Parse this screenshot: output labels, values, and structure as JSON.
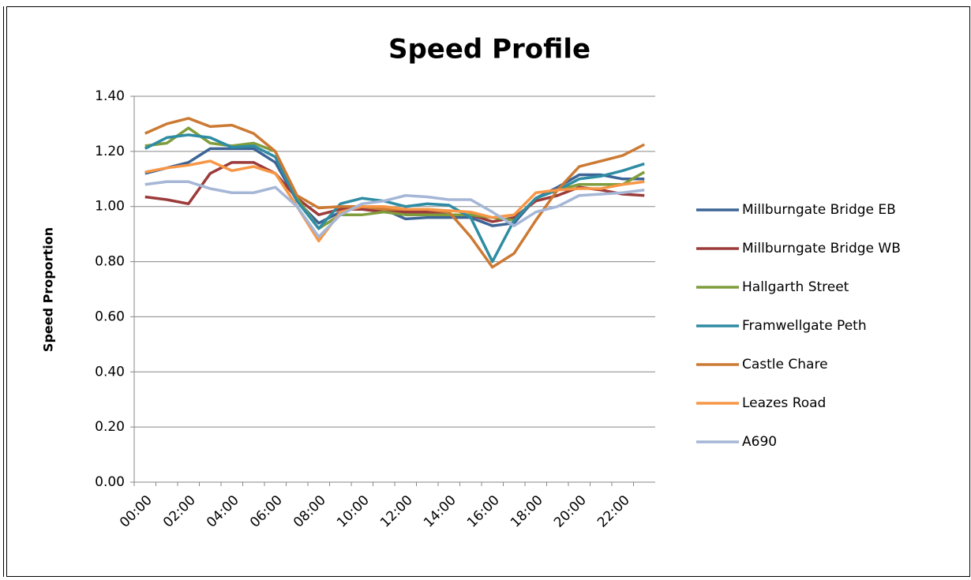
{
  "chart_data": {
    "type": "line",
    "title": "Speed Profile",
    "y_label": "Speed Proportion",
    "categories": [
      "00:00",
      null,
      "02:00",
      null,
      "04:00",
      null,
      "06:00",
      null,
      "08:00",
      null,
      "10:00",
      null,
      "12:00",
      null,
      "14:00",
      null,
      "16:00",
      null,
      "18:00",
      null,
      "20:00",
      null,
      "22:00",
      null
    ],
    "ylim": [
      0,
      1.4
    ],
    "yticks": [
      {
        "value": 0,
        "label": "0.00"
      },
      {
        "value": 0.2,
        "label": "0.20"
      },
      {
        "value": 0.4,
        "label": "0.40"
      },
      {
        "value": 0.6,
        "label": "0.60"
      },
      {
        "value": 0.8,
        "label": "0.80"
      },
      {
        "value": 1,
        "label": "1.00"
      },
      {
        "value": 1.2,
        "label": "1.20"
      },
      {
        "value": 1.4,
        "label": "1.40"
      }
    ],
    "grid": true,
    "legend": "right",
    "series": [
      {
        "name": "Millburngate Bridge EB",
        "color": "#3c6496",
        "values": [
          1.12,
          1.14,
          1.16,
          1.21,
          1.21,
          1.21,
          1.16,
          1.02,
          0.94,
          0.98,
          1.0,
          0.99,
          0.955,
          0.96,
          0.96,
          0.96,
          0.93,
          0.94,
          1.03,
          1.07,
          1.115,
          1.115,
          1.1,
          1.1
        ]
      },
      {
        "name": "Millburngate Bridge WB",
        "color": "#9b3b3a",
        "values": [
          1.035,
          1.025,
          1.01,
          1.12,
          1.16,
          1.16,
          1.12,
          1.03,
          0.97,
          0.99,
          0.99,
          0.98,
          0.98,
          0.98,
          0.97,
          0.97,
          0.945,
          0.96,
          1.02,
          1.04,
          1.07,
          1.06,
          1.045,
          1.04
        ]
      },
      {
        "name": "Hallgarth Street",
        "color": "#7f9d3c",
        "values": [
          1.22,
          1.23,
          1.285,
          1.23,
          1.22,
          1.23,
          1.2,
          1.03,
          0.92,
          0.97,
          0.97,
          0.98,
          0.97,
          0.97,
          0.97,
          0.97,
          0.96,
          0.95,
          1.03,
          1.06,
          1.08,
          1.08,
          1.08,
          1.125
        ]
      },
      {
        "name": "Framwellgate Peth",
        "color": "#2e8ca3",
        "values": [
          1.21,
          1.25,
          1.26,
          1.25,
          1.215,
          1.22,
          1.18,
          1.02,
          0.92,
          1.01,
          1.03,
          1.02,
          1.0,
          1.01,
          1.005,
          0.96,
          0.8,
          0.95,
          1.03,
          1.06,
          1.1,
          1.11,
          1.13,
          1.155
        ]
      },
      {
        "name": "Castle Chare",
        "color": "#cc7a33",
        "values": [
          1.265,
          1.3,
          1.32,
          1.29,
          1.295,
          1.265,
          1.2,
          1.04,
          0.995,
          1.0,
          1.0,
          0.99,
          0.99,
          0.99,
          0.98,
          0.89,
          0.78,
          0.83,
          0.95,
          1.06,
          1.145,
          1.165,
          1.185,
          1.225
        ]
      },
      {
        "name": "Leazes Road",
        "color": "#f79646",
        "values": [
          1.125,
          1.14,
          1.15,
          1.165,
          1.13,
          1.145,
          1.12,
          1.0,
          0.875,
          0.98,
          1.0,
          1.0,
          0.99,
          0.99,
          0.985,
          0.98,
          0.96,
          0.97,
          1.05,
          1.06,
          1.065,
          1.065,
          1.08,
          1.09
        ]
      },
      {
        "name": "A690",
        "color": "#a5b6d6",
        "values": [
          1.08,
          1.09,
          1.09,
          1.065,
          1.05,
          1.05,
          1.07,
          1.0,
          0.89,
          0.97,
          1.01,
          1.02,
          1.04,
          1.035,
          1.025,
          1.025,
          0.98,
          0.93,
          0.98,
          1.0,
          1.04,
          1.045,
          1.05,
          1.06
        ]
      }
    ]
  }
}
